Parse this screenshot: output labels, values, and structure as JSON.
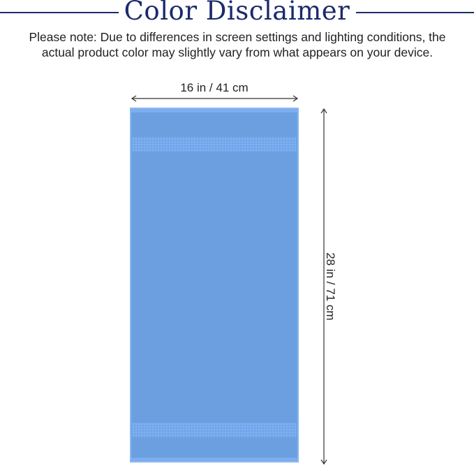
{
  "title": "Color Disclaimer",
  "note": "Please note: Due to differences in screen settings and lighting conditions, the actual product color may slightly vary from what appears on your device.",
  "dimensions": {
    "width": "16 in / 41 cm",
    "height": "28 in / 71 cm"
  },
  "colors": {
    "title": "#1b2a6b",
    "towel": "#6b9fe0",
    "band": "#7aaef0"
  }
}
